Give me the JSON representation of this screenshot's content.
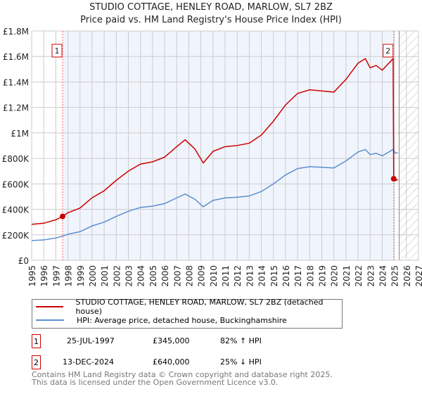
{
  "chart_data": {
    "type": "line",
    "title": "STUDIO COTTAGE, HENLEY ROAD, MARLOW, SL7 2BZ",
    "subtitle": "Price paid vs. HM Land Registry's House Price Index (HPI)",
    "xlim": [
      1995,
      2027
    ],
    "ylim": [
      0,
      1800000
    ],
    "yticks": [
      {
        "v": 0,
        "label": "£0"
      },
      {
        "v": 200000,
        "label": "£200K"
      },
      {
        "v": 400000,
        "label": "£400K"
      },
      {
        "v": 600000,
        "label": "£600K"
      },
      {
        "v": 800000,
        "label": "£800K"
      },
      {
        "v": 1000000,
        "label": "£1M"
      },
      {
        "v": 1200000,
        "label": "£1.2M"
      },
      {
        "v": 1400000,
        "label": "£1.4M"
      },
      {
        "v": 1600000,
        "label": "£1.6M"
      },
      {
        "v": 1800000,
        "label": "£1.8M"
      }
    ],
    "xticks": [
      "1995",
      "1996",
      "1997",
      "1998",
      "1999",
      "2000",
      "2001",
      "2002",
      "2003",
      "2004",
      "2005",
      "2006",
      "2007",
      "2008",
      "2009",
      "2010",
      "2011",
      "2012",
      "2013",
      "2014",
      "2015",
      "2016",
      "2017",
      "2018",
      "2019",
      "2020",
      "2021",
      "2022",
      "2023",
      "2024",
      "2025",
      "2026",
      "2027"
    ],
    "grid": true,
    "shaded_period": [
      1997.56,
      2024.95
    ],
    "forecast_hatch_from": 2025.4,
    "series": [
      {
        "name": "STUDIO COTTAGE, HENLEY ROAD, MARLOW, SL7 2BZ (detached house)",
        "color": "#cc0000",
        "x": [
          1995,
          1996,
          1997,
          1997.56,
          1998,
          1999,
          2000,
          2001,
          2002,
          2003,
          2004,
          2005,
          2006,
          2007,
          2007.7,
          2008.5,
          2009.2,
          2010,
          2011,
          2012,
          2013,
          2014,
          2015,
          2016,
          2017,
          2018,
          2019,
          2020,
          2021,
          2022,
          2022.6,
          2023,
          2023.5,
          2024,
          2024.9,
          2024.95,
          2025.1,
          2025.3
        ],
        "y": [
          282000,
          291000,
          318000,
          345000,
          373000,
          410000,
          491000,
          546000,
          628000,
          700000,
          755000,
          773000,
          810000,
          892000,
          946000,
          874000,
          764000,
          855000,
          892000,
          901000,
          919000,
          983000,
          1092000,
          1219000,
          1310000,
          1338000,
          1329000,
          1320000,
          1420000,
          1547000,
          1583000,
          1511000,
          1529000,
          1492000,
          1583000,
          640000,
          625000,
          635000
        ]
      },
      {
        "name": "HPI: Average price, detached house, Buckinghamshire",
        "color": "#5b8fd0",
        "x": [
          1995,
          1996,
          1997,
          1997.56,
          1998,
          1999,
          2000,
          2001,
          2002,
          2003,
          2004,
          2005,
          2006,
          2007,
          2007.7,
          2008.5,
          2009.2,
          2010,
          2011,
          2012,
          2013,
          2014,
          2015,
          2016,
          2017,
          2018,
          2019,
          2020,
          2021,
          2022,
          2022.6,
          2023,
          2023.5,
          2024,
          2024.9,
          2025.1,
          2025.3
        ],
        "y": [
          155000,
          160000,
          175000,
          190000,
          205000,
          225000,
          270000,
          300000,
          345000,
          385000,
          415000,
          425000,
          445000,
          490000,
          520000,
          480000,
          420000,
          470000,
          490000,
          495000,
          505000,
          540000,
          600000,
          670000,
          720000,
          735000,
          730000,
          725000,
          780000,
          850000,
          870000,
          830000,
          840000,
          820000,
          870000,
          840000,
          845000
        ]
      }
    ],
    "sales": [
      {
        "n": "1",
        "x": 1997.56,
        "y": 345000
      },
      {
        "n": "2",
        "x": 2024.95,
        "y": 640000
      }
    ]
  },
  "legend": {
    "items": [
      "STUDIO COTTAGE, HENLEY ROAD, MARLOW, SL7 2BZ (detached house)",
      "HPI: Average price, detached house, Buckinghamshire"
    ]
  },
  "transactions": [
    {
      "n": "1",
      "date": "25-JUL-1997",
      "price": "£345,000",
      "hpi": "82% ↑ HPI"
    },
    {
      "n": "2",
      "date": "13-DEC-2024",
      "price": "£640,000",
      "hpi": "25% ↓ HPI"
    }
  ],
  "footer": {
    "line1": "Contains HM Land Registry data © Crown copyright and database right 2025.",
    "line2": "This data is licensed under the Open Government Licence v3.0."
  }
}
